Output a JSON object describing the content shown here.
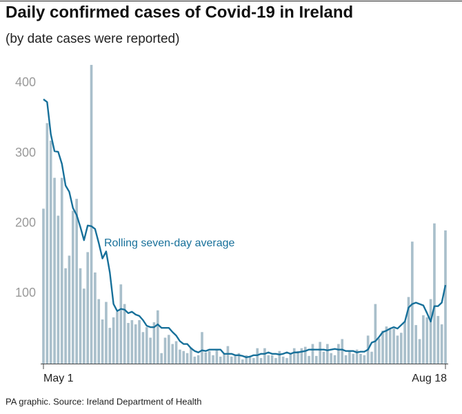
{
  "chart_data": {
    "type": "bar",
    "title": "Daily confirmed cases of Covid-19 in Ireland",
    "subtitle": "(by date cases were reported)",
    "source": "PA graphic. Source: Ireland Department of Health",
    "categories": [
      "May 1",
      null,
      null,
      null,
      null,
      null,
      null,
      null,
      null,
      null,
      null,
      null,
      null,
      null,
      null,
      null,
      null,
      null,
      null,
      null,
      null,
      null,
      null,
      null,
      null,
      null,
      null,
      null,
      null,
      null,
      null,
      null,
      null,
      null,
      null,
      null,
      null,
      null,
      null,
      null,
      null,
      null,
      null,
      null,
      null,
      null,
      null,
      null,
      null,
      null,
      null,
      null,
      null,
      null,
      null,
      null,
      null,
      null,
      null,
      null,
      null,
      null,
      null,
      null,
      null,
      null,
      null,
      null,
      null,
      null,
      null,
      null,
      null,
      null,
      null,
      null,
      null,
      null,
      null,
      null,
      null,
      null,
      null,
      null,
      null,
      null,
      null,
      null,
      null,
      null,
      null,
      null,
      null,
      null,
      null,
      null,
      null,
      null,
      null,
      null,
      null,
      null,
      null,
      null,
      null,
      null,
      null,
      null,
      null,
      "Aug 18"
    ],
    "series": [
      {
        "type": "bar",
        "color": "#a9bfcb",
        "values": [
          221,
          343,
          318,
          265,
          211,
          265,
          136,
          154,
          218,
          235,
          136,
          107,
          159,
          426,
          130,
          92,
          63,
          88,
          51,
          66,
          74,
          113,
          85,
          58,
          62,
          56,
          62,
          45,
          52,
          37,
          59,
          76,
          15,
          37,
          41,
          28,
          32,
          20,
          18,
          15,
          23,
          10,
          12,
          45,
          16,
          18,
          12,
          20,
          10,
          14,
          25,
          10,
          12,
          15,
          6,
          12,
          9,
          8,
          22,
          8,
          22,
          12,
          12,
          8,
          18,
          10,
          8,
          15,
          22,
          18,
          22,
          24,
          11,
          28,
          11,
          31,
          17,
          28,
          15,
          12,
          28,
          35,
          12,
          18,
          14,
          20,
          14,
          12,
          40,
          17,
          85,
          36,
          47,
          53,
          50,
          50,
          40,
          44,
          60,
          95,
          174,
          55,
          35,
          69,
          66,
          92,
          200,
          68,
          56,
          190
        ]
      },
      {
        "type": "line",
        "name": "Rolling seven-day average",
        "color": "#17709a",
        "values": [
          377,
          373,
          327,
          303,
          302,
          285,
          254,
          245,
          222,
          212,
          195,
          176,
          197,
          196,
          192,
          172,
          150,
          160,
          130,
          85,
          75,
          78,
          77,
          72,
          74,
          70,
          68,
          62,
          54,
          52,
          52,
          56,
          51,
          51,
          51,
          45,
          40,
          32,
          28,
          28,
          22,
          18,
          16,
          19,
          18,
          20,
          20,
          20,
          20,
          14,
          14,
          14,
          12,
          12,
          11,
          9,
          10,
          12,
          12,
          14,
          14,
          16,
          14,
          14,
          13,
          14,
          16,
          14,
          16,
          16,
          17,
          18,
          20,
          20,
          20,
          20,
          20,
          19,
          20,
          21,
          20,
          20,
          18,
          18,
          18,
          16,
          17,
          17,
          20,
          30,
          32,
          38,
          45,
          47,
          50,
          52,
          50,
          55,
          60,
          80,
          85,
          87,
          85,
          83,
          72,
          60,
          82,
          82,
          87,
          112
        ]
      }
    ],
    "ylim": [
      0,
      430
    ],
    "yticks": [
      100,
      200,
      300,
      400
    ]
  }
}
